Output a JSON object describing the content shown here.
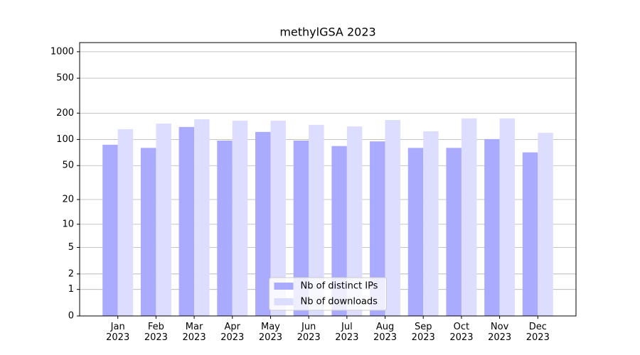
{
  "chart_data": {
    "type": "bar",
    "title": "methylGSA 2023",
    "categories": [
      "Jan\n2023",
      "Feb\n2023",
      "Mar\n2023",
      "Apr\n2023",
      "May\n2023",
      "Jun\n2023",
      "Jul\n2023",
      "Aug\n2023",
      "Sep\n2023",
      "Oct\n2023",
      "Nov\n2023",
      "Dec\n2023"
    ],
    "series": [
      {
        "name": "Nb of distinct IPs",
        "color": "#aaaaff",
        "values": [
          87,
          80,
          139,
          97,
          122,
          97,
          84,
          95,
          80,
          80,
          101,
          71
        ]
      },
      {
        "name": "Nb of downloads",
        "color": "#ddddff",
        "values": [
          131,
          152,
          170,
          164,
          164,
          147,
          141,
          167,
          124,
          174,
          174,
          119
        ]
      }
    ],
    "scale": "log1p",
    "ylim": [
      0,
      1270
    ],
    "yticks": [
      0,
      1,
      2,
      5,
      10,
      20,
      50,
      100,
      200,
      500,
      1000
    ],
    "grid": true,
    "legend": "lower center"
  }
}
